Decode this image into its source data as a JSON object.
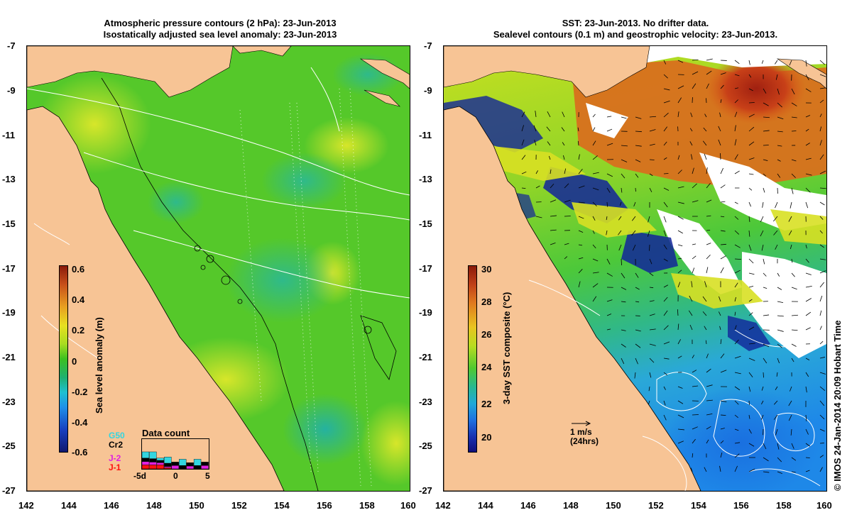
{
  "left_panel": {
    "title_line1": "Atmospheric pressure contours (2 hPa): 23-Jun-2013",
    "title_line2": "Isostatically adjusted sea level anomaly: 23-Jun-2013",
    "colorbar": {
      "label": "Sea level anomaly (m)",
      "ticks": [
        "0.6",
        "0.4",
        "0.2",
        "0",
        "-0.2",
        "-0.4",
        "-0.6"
      ]
    },
    "data_count": {
      "title": "Data count",
      "satellites": [
        "G50",
        "Cr2",
        "J-2",
        "J-1"
      ],
      "satellite_colors": [
        "#33d6e0",
        "#000000",
        "#e020e0",
        "#ff1010"
      ],
      "axis_labels": [
        "-5d",
        "0",
        "5"
      ],
      "bars": [
        {
          "cyan": 0.55,
          "black": 0.3,
          "magenta": 0.3,
          "red": 0.35
        },
        {
          "cyan": 0.6,
          "black": 0.3,
          "magenta": 0.25,
          "red": 0.35
        },
        {
          "cyan": 0.2,
          "black": 0.2,
          "magenta": 0.2,
          "red": 0.35
        },
        {
          "cyan": 0.55,
          "black": 0.3,
          "magenta": 0.1,
          "red": 0.1
        },
        {
          "cyan": 0.0,
          "black": 0.3,
          "magenta": 0.3,
          "red": 0.0
        },
        {
          "cyan": 0.55,
          "black": 0.3,
          "magenta": 0.0,
          "red": 0.0
        },
        {
          "cyan": 0.0,
          "black": 0.3,
          "magenta": 0.25,
          "red": 0.0
        },
        {
          "cyan": 0.55,
          "black": 0.3,
          "magenta": 0.0,
          "red": 0.0
        },
        {
          "cyan": 0.0,
          "black": 0.3,
          "magenta": 0.3,
          "red": 0.0
        }
      ]
    }
  },
  "right_panel": {
    "title_line1": "SST: 23-Jun-2013. No drifter data.",
    "title_line2": "Sealevel contours (0.1 m) and geostrophic velocity: 23-Jun-2013.",
    "colorbar": {
      "label": "3-day SST composite (°C)",
      "ticks": [
        "30",
        "28",
        "26",
        "24",
        "22",
        "20"
      ]
    },
    "velocity_scale": {
      "line1": "1 m/s",
      "line2": "(24hrs)"
    }
  },
  "axes": {
    "x_ticks": [
      "142",
      "144",
      "146",
      "148",
      "150",
      "152",
      "154",
      "156",
      "158",
      "160"
    ],
    "y_ticks": [
      "-7",
      "-9",
      "-11",
      "-13",
      "-15",
      "-17",
      "-19",
      "-21",
      "-23",
      "-25",
      "-27"
    ]
  },
  "credit": "© IMOS 24-Jan-2014 20:09 Hobart Time",
  "colors": {
    "land": "#f7c495",
    "sla_green": "#55cc22",
    "sst_green": "#4cc83a"
  }
}
